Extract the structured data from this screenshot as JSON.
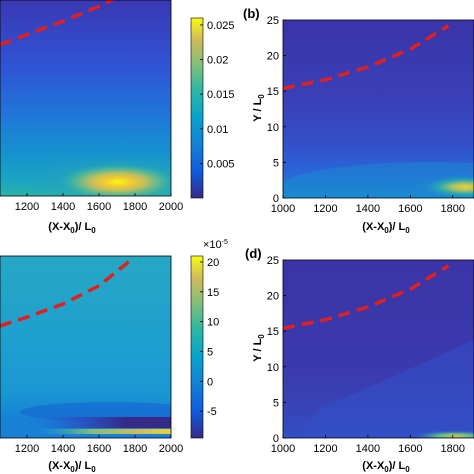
{
  "chart_data": [
    {
      "id": "a",
      "type": "heatmap",
      "panel_label": "",
      "xlabel": "(X-X0)/ L0",
      "ylabel": "",
      "xlim": [
        1050,
        2000
      ],
      "ylim": [
        0,
        25
      ],
      "xticks": [
        "1200",
        "1400",
        "1600",
        "1800",
        "2000"
      ],
      "yticks": [],
      "colorbar": {
        "min": 0,
        "max": 0.026,
        "ticks": [
          "0.025",
          "0.02",
          "0.015",
          "0.01",
          "0.005"
        ],
        "multiplier": ""
      },
      "hotspot": {
        "x": 1700,
        "y": 2.0,
        "peak": 0.025
      },
      "dashed_curve": {
        "color": "#e02020",
        "x": [
          1050,
          1200,
          1400,
          1600,
          1800
        ],
        "y": [
          19.3,
          20.6,
          22.3,
          24.2,
          26.5
        ]
      }
    },
    {
      "id": "b",
      "type": "heatmap",
      "panel_label": "(b)",
      "xlabel": "(X-X0)/ L0",
      "ylabel": "Y / L0",
      "xlim": [
        1000,
        1900
      ],
      "ylim": [
        0,
        25
      ],
      "xticks": [
        "1000",
        "1200",
        "1400",
        "1600",
        "1800"
      ],
      "yticks": [
        "0",
        "5",
        "10",
        "15",
        "20",
        "25"
      ],
      "colorbar": null,
      "hotspot": {
        "x": 1880,
        "y": 1.5,
        "peak": 0.018
      },
      "dashed_curve": {
        "color": "#e02020",
        "x": [
          1000,
          1200,
          1400,
          1600,
          1780
        ],
        "y": [
          15.4,
          16.6,
          18.4,
          20.9,
          24.2
        ]
      }
    },
    {
      "id": "c",
      "type": "heatmap",
      "panel_label": "",
      "xlabel": "(X-X0)/ L0",
      "ylabel": "",
      "xlim": [
        1050,
        2000
      ],
      "ylim": [
        0,
        25
      ],
      "xticks": [
        "1200",
        "1400",
        "1600",
        "1800",
        "2000"
      ],
      "yticks": [],
      "colorbar": {
        "min": -9.5,
        "max": 21,
        "ticks": [
          "20",
          "15",
          "10",
          "5",
          "0",
          "-5"
        ],
        "multiplier": "×10",
        "exponent": "-5"
      },
      "band": {
        "y": 1.5,
        "value": -8
      },
      "dashed_curve": {
        "color": "#e02020",
        "x": [
          1050,
          1200,
          1400,
          1600,
          1780
        ],
        "y": [
          15.4,
          16.6,
          18.4,
          20.9,
          24.5
        ]
      }
    },
    {
      "id": "d",
      "type": "heatmap",
      "panel_label": "(d)",
      "xlabel": "(X-X0)/ L0",
      "ylabel": "Y / L0",
      "xlim": [
        1000,
        1900
      ],
      "ylim": [
        0,
        25
      ],
      "xticks": [
        "1000",
        "1200",
        "1400",
        "1600",
        "1800"
      ],
      "yticks": [
        "0",
        "5",
        "10",
        "15",
        "20",
        "25"
      ],
      "colorbar": null,
      "hotspot": {
        "x": 1850,
        "y": 0.5,
        "peak": 0.01
      },
      "dashed_curve": {
        "color": "#e02020",
        "x": [
          1000,
          1200,
          1400,
          1600,
          1780
        ],
        "y": [
          15.4,
          16.6,
          18.4,
          20.9,
          24.2
        ]
      }
    }
  ]
}
